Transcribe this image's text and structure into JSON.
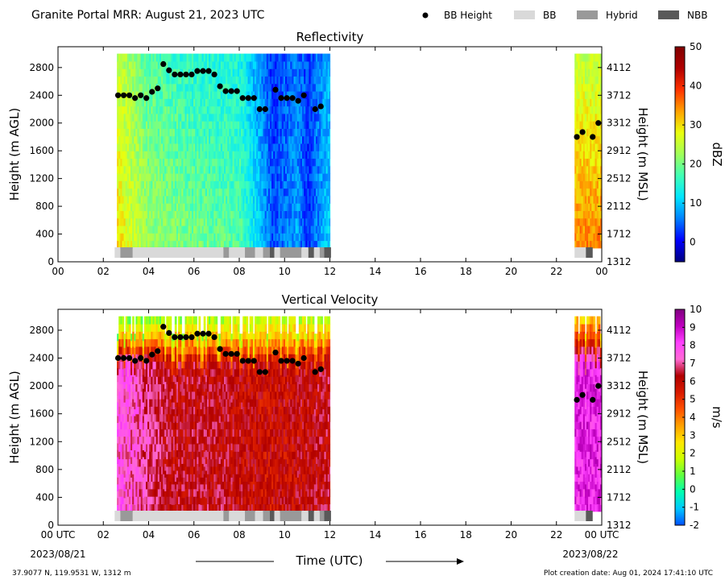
{
  "header": {
    "title": "Granite Portal MRR:  August 21, 2023 UTC"
  },
  "legend": {
    "placement": "top-right",
    "items": [
      {
        "label": "BB Height",
        "marker": "dot",
        "color": "#000000"
      },
      {
        "label": "BB",
        "marker": "rect",
        "color": "#d9d9d9"
      },
      {
        "label": "Hybrid",
        "marker": "rect",
        "color": "#999999"
      },
      {
        "label": "NBB",
        "marker": "rect",
        "color": "#595959"
      }
    ]
  },
  "footer": {
    "location": "37.9077 N, 119.9531 W, 1312 m",
    "creation": "Plot creation date: Aug 01, 2024 17:41:10 UTC",
    "xlabel": "Time (UTC)",
    "start_date": "2023/08/21",
    "end_date": "2023/08/22"
  },
  "chart_data": [
    {
      "type": "heatmap",
      "title": "Reflectivity",
      "xlabel": "",
      "ylabel": "Height (m AGL)",
      "ylabel_right": "Height (m MSL)",
      "x_unit": "hours UTC",
      "xlim": [
        0,
        24
      ],
      "ylim": [
        0,
        3100
      ],
      "x_ticks": [
        "00",
        "02",
        "04",
        "06",
        "08",
        "10",
        "12",
        "14",
        "16",
        "18",
        "20",
        "22",
        "00"
      ],
      "y_ticks": [
        0,
        400,
        800,
        1200,
        1600,
        2000,
        2400,
        2800
      ],
      "y_ticks_right": [
        "1312",
        "1712",
        "2112",
        "2512",
        "2912",
        "3312",
        "3712",
        "4112"
      ],
      "colorbar": {
        "label": "dBZ",
        "min": -5,
        "max": 50,
        "ticks": [
          "0",
          "10",
          "20",
          "30",
          "40",
          "50"
        ],
        "colors": [
          "#00007f",
          "#0000ff",
          "#0080ff",
          "#00e5ff",
          "#40ffb6",
          "#a0ff5a",
          "#eaff0d",
          "#ffa100",
          "#ff3200",
          "#b00000",
          "#7f0000"
        ]
      },
      "data_periods_hours": [
        [
          2.6,
          12.0
        ],
        [
          22.8,
          24.0
        ]
      ],
      "reflectivity_profile": [
        {
          "time": 2.6,
          "low_dbz": 30,
          "high_dbz": 25
        },
        {
          "time": 4.0,
          "low_dbz": 22,
          "high_dbz": 18
        },
        {
          "time": 6.0,
          "low_dbz": 20,
          "high_dbz": 15
        },
        {
          "time": 8.0,
          "low_dbz": 18,
          "high_dbz": 14
        },
        {
          "time": 9.5,
          "low_dbz": 4,
          "high_dbz": 2
        },
        {
          "time": 10.5,
          "low_dbz": 8,
          "high_dbz": 6
        },
        {
          "time": 11.0,
          "low_dbz": 2,
          "high_dbz": 3
        },
        {
          "time": 11.8,
          "low_dbz": 10,
          "high_dbz": 8
        },
        {
          "time": 23.0,
          "low_dbz": 35,
          "high_dbz": 25
        }
      ],
      "bb_heights": {
        "x": [
          2.65,
          2.9,
          3.15,
          3.4,
          3.65,
          3.9,
          4.15,
          4.4,
          4.65,
          4.9,
          5.15,
          5.4,
          5.65,
          5.9,
          6.15,
          6.4,
          6.65,
          6.9,
          7.15,
          7.4,
          7.65,
          7.9,
          8.15,
          8.4,
          8.65,
          8.9,
          9.15,
          9.6,
          9.85,
          10.1,
          10.35,
          10.6,
          10.85,
          11.35,
          11.6,
          22.9,
          23.15,
          23.6,
          23.85
        ],
        "y": [
          2400,
          2400,
          2400,
          2360,
          2400,
          2360,
          2450,
          2500,
          2850,
          2760,
          2700,
          2700,
          2700,
          2700,
          2750,
          2750,
          2750,
          2700,
          2530,
          2460,
          2460,
          2460,
          2360,
          2360,
          2360,
          2200,
          2200,
          2480,
          2360,
          2360,
          2360,
          2320,
          2400,
          2200,
          2240,
          1800,
          1870,
          1800,
          2000
        ]
      },
      "bb_types": [
        {
          "start": 2.5,
          "end": 2.75,
          "type": "BB"
        },
        {
          "start": 2.75,
          "end": 3.3,
          "type": "Hybrid"
        },
        {
          "start": 3.3,
          "end": 7.3,
          "type": "BB"
        },
        {
          "start": 7.3,
          "end": 7.55,
          "type": "Hybrid"
        },
        {
          "start": 7.55,
          "end": 8.25,
          "type": "BB"
        },
        {
          "start": 8.25,
          "end": 8.7,
          "type": "Hybrid"
        },
        {
          "start": 8.7,
          "end": 9.05,
          "type": "BB"
        },
        {
          "start": 9.05,
          "end": 9.35,
          "type": "Hybrid"
        },
        {
          "start": 9.35,
          "end": 9.55,
          "type": "NBB"
        },
        {
          "start": 9.55,
          "end": 9.8,
          "type": "BB"
        },
        {
          "start": 9.8,
          "end": 10.75,
          "type": "Hybrid"
        },
        {
          "start": 10.75,
          "end": 11.05,
          "type": "BB"
        },
        {
          "start": 11.05,
          "end": 11.3,
          "type": "NBB"
        },
        {
          "start": 11.3,
          "end": 11.55,
          "type": "BB"
        },
        {
          "start": 11.55,
          "end": 11.75,
          "type": "Hybrid"
        },
        {
          "start": 11.75,
          "end": 12.05,
          "type": "NBB"
        },
        {
          "start": 22.8,
          "end": 23.3,
          "type": "BB"
        },
        {
          "start": 23.3,
          "end": 23.6,
          "type": "NBB"
        }
      ]
    },
    {
      "type": "heatmap",
      "title": "Vertical Velocity",
      "xlabel": "Time (UTC)",
      "ylabel": "Height (m AGL)",
      "ylabel_right": "Height (m MSL)",
      "x_unit": "hours UTC",
      "xlim": [
        0,
        24
      ],
      "ylim": [
        0,
        3100
      ],
      "x_ticks": [
        "00 UTC",
        "02",
        "04",
        "06",
        "08",
        "10",
        "12",
        "14",
        "16",
        "18",
        "20",
        "22",
        "00 UTC"
      ],
      "y_ticks": [
        0,
        400,
        800,
        1200,
        1600,
        2000,
        2400,
        2800
      ],
      "y_ticks_right": [
        "1312",
        "1712",
        "2112",
        "2512",
        "2912",
        "3312",
        "3712",
        "4112"
      ],
      "colorbar": {
        "label": "m/s",
        "min": -2,
        "max": 10,
        "ticks": [
          "-2",
          "-1",
          "0",
          "1",
          "2",
          "3",
          "4",
          "5",
          "6",
          "7",
          "8",
          "9",
          "10"
        ],
        "colors": [
          "#0050ff",
          "#00c8ff",
          "#00ffb0",
          "#60ff40",
          "#ccff00",
          "#ffe600",
          "#ffa000",
          "#ff5000",
          "#d81a00",
          "#b00000",
          "#ff6ad5",
          "#ff40ff",
          "#c000c0",
          "#7f007f"
        ]
      },
      "data_periods_hours": [
        [
          2.6,
          12.0
        ],
        [
          22.8,
          24.0
        ]
      ],
      "velocity_profile": [
        {
          "time": 3.0,
          "low_ms": 7.5,
          "high_ms": 1.2
        },
        {
          "time": 5.0,
          "low_ms": 6.2,
          "high_ms": 1.5
        },
        {
          "time": 7.0,
          "low_ms": 6.3,
          "high_ms": 1.5
        },
        {
          "time": 9.0,
          "low_ms": 5.8,
          "high_ms": 1.6
        },
        {
          "time": 10.5,
          "low_ms": 6.0,
          "high_ms": 1.8
        },
        {
          "time": 23.2,
          "low_ms": 8.5,
          "high_ms": 3.0
        }
      ],
      "bb_heights": {
        "x": [
          2.65,
          2.9,
          3.15,
          3.4,
          3.65,
          3.9,
          4.15,
          4.4,
          4.65,
          4.9,
          5.15,
          5.4,
          5.65,
          5.9,
          6.15,
          6.4,
          6.65,
          6.9,
          7.15,
          7.4,
          7.65,
          7.9,
          8.15,
          8.4,
          8.65,
          8.9,
          9.15,
          9.6,
          9.85,
          10.1,
          10.35,
          10.6,
          10.85,
          11.35,
          11.6,
          22.9,
          23.15,
          23.6,
          23.85
        ],
        "y": [
          2400,
          2400,
          2400,
          2360,
          2400,
          2360,
          2450,
          2500,
          2850,
          2760,
          2700,
          2700,
          2700,
          2700,
          2750,
          2750,
          2750,
          2700,
          2530,
          2460,
          2460,
          2460,
          2360,
          2360,
          2360,
          2200,
          2200,
          2480,
          2360,
          2360,
          2360,
          2320,
          2400,
          2200,
          2240,
          1800,
          1870,
          1800,
          2000
        ]
      },
      "bb_types": [
        {
          "start": 2.5,
          "end": 2.75,
          "type": "BB"
        },
        {
          "start": 2.75,
          "end": 3.3,
          "type": "Hybrid"
        },
        {
          "start": 3.3,
          "end": 7.3,
          "type": "BB"
        },
        {
          "start": 7.3,
          "end": 7.55,
          "type": "Hybrid"
        },
        {
          "start": 7.55,
          "end": 8.25,
          "type": "BB"
        },
        {
          "start": 8.25,
          "end": 8.7,
          "type": "Hybrid"
        },
        {
          "start": 8.7,
          "end": 9.05,
          "type": "BB"
        },
        {
          "start": 9.05,
          "end": 9.35,
          "type": "Hybrid"
        },
        {
          "start": 9.35,
          "end": 9.55,
          "type": "NBB"
        },
        {
          "start": 9.55,
          "end": 9.8,
          "type": "BB"
        },
        {
          "start": 9.8,
          "end": 10.75,
          "type": "Hybrid"
        },
        {
          "start": 10.75,
          "end": 11.05,
          "type": "BB"
        },
        {
          "start": 11.05,
          "end": 11.3,
          "type": "NBB"
        },
        {
          "start": 11.3,
          "end": 11.55,
          "type": "BB"
        },
        {
          "start": 11.55,
          "end": 11.75,
          "type": "Hybrid"
        },
        {
          "start": 11.75,
          "end": 12.05,
          "type": "NBB"
        },
        {
          "start": 22.8,
          "end": 23.3,
          "type": "BB"
        },
        {
          "start": 23.3,
          "end": 23.6,
          "type": "NBB"
        }
      ]
    }
  ]
}
